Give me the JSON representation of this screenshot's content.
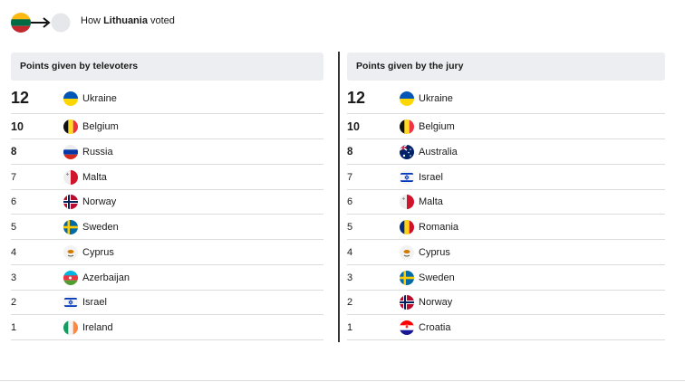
{
  "header": {
    "prefix": "How ",
    "country": "Lithuania",
    "suffix": " voted"
  },
  "televoters": {
    "title": "Points given by televoters",
    "rows": [
      {
        "points": 12,
        "country": "Ukraine"
      },
      {
        "points": 10,
        "country": "Belgium"
      },
      {
        "points": 8,
        "country": "Russia"
      },
      {
        "points": 7,
        "country": "Malta"
      },
      {
        "points": 6,
        "country": "Norway"
      },
      {
        "points": 5,
        "country": "Sweden"
      },
      {
        "points": 4,
        "country": "Cyprus"
      },
      {
        "points": 3,
        "country": "Azerbaijan"
      },
      {
        "points": 2,
        "country": "Israel"
      },
      {
        "points": 1,
        "country": "Ireland"
      }
    ]
  },
  "jury": {
    "title": "Points given by the jury",
    "rows": [
      {
        "points": 12,
        "country": "Ukraine"
      },
      {
        "points": 10,
        "country": "Belgium"
      },
      {
        "points": 8,
        "country": "Australia"
      },
      {
        "points": 7,
        "country": "Israel"
      },
      {
        "points": 6,
        "country": "Malta"
      },
      {
        "points": 5,
        "country": "Romania"
      },
      {
        "points": 4,
        "country": "Cyprus"
      },
      {
        "points": 3,
        "country": "Sweden"
      },
      {
        "points": 2,
        "country": "Norway"
      },
      {
        "points": 1,
        "country": "Croatia"
      }
    ]
  }
}
